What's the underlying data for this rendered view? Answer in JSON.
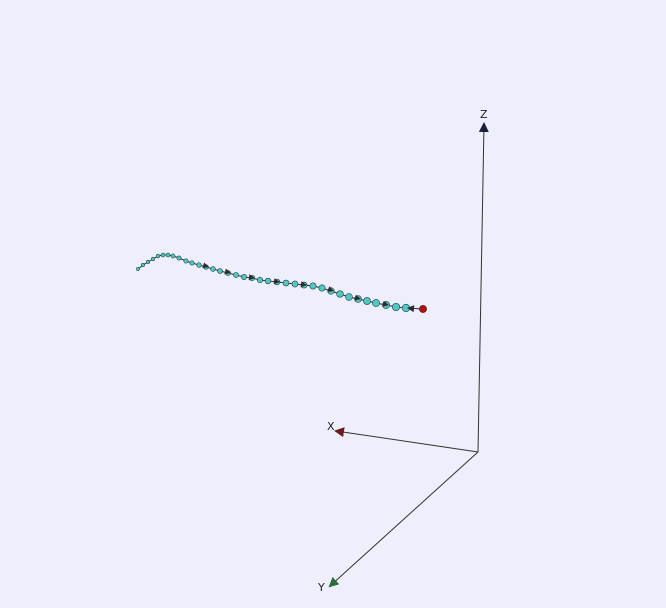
{
  "colors": {
    "background": "#eeeefc",
    "axis_line": "#333333",
    "x_arrow": "#6a1b1b",
    "y_arrow": "#2e6b3a",
    "z_arrow": "#1c1f3a",
    "path_line": "#2c2c2c",
    "node_fill": "#53c6c3",
    "node_stroke": "#1a4747",
    "start_marker": "#b01212"
  },
  "axes": {
    "x": {
      "label": "X"
    },
    "y": {
      "label": "Y"
    },
    "z": {
      "label": "Z"
    }
  },
  "trajectory": {
    "node_count": 36,
    "has_start_marker": true,
    "marker_shape": "sphere",
    "connector": "arrow"
  }
}
